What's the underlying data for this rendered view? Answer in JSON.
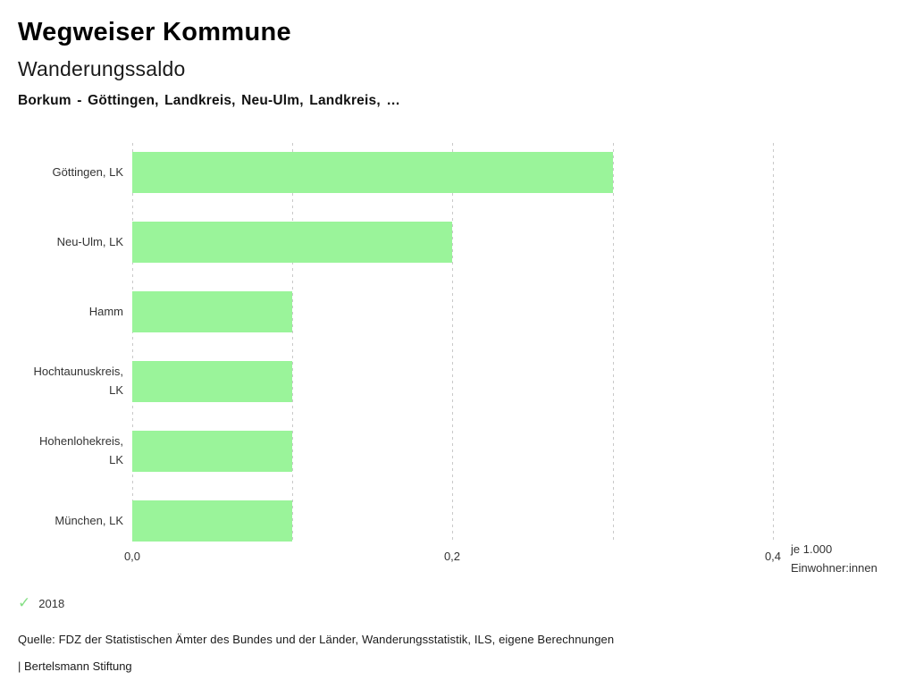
{
  "header": {
    "title": "Wegweiser Kommune",
    "subtitle": "Wanderungssaldo",
    "comparison_line": "Borkum - Göttingen, Landkreis, Neu-Ulm, Landkreis, …"
  },
  "chart_data": {
    "type": "bar",
    "orientation": "horizontal",
    "title": "Wanderungssaldo",
    "categories": [
      "Göttingen, LK",
      "Neu-Ulm, LK",
      "Hamm",
      "Hochtaunuskreis, LK",
      "Hohenlohekreis, LK",
      "München, LK"
    ],
    "series": [
      {
        "name": "2018",
        "values": [
          0.3,
          0.2,
          0.1,
          0.1,
          0.1,
          0.1
        ]
      }
    ],
    "xlabel": "je 1.000 Einwohner:innen",
    "xlim": [
      0,
      0.4
    ],
    "x_tick_labels": [
      "0,0",
      "0,2",
      "0,4"
    ],
    "x_tick_values": [
      0,
      0.2,
      0.4
    ],
    "grid_interval": 0.1,
    "grid": true,
    "legend_position": "bottom-left",
    "bar_color": "#9af49a",
    "grid_color": "#c9c9c9"
  },
  "axis": {
    "unit_line1": "je 1.000",
    "unit_line2": "Einwohner:innen"
  },
  "legend": {
    "check_icon": "✓",
    "check_color": "#86df86",
    "year": "2018"
  },
  "footer": {
    "source": "Quelle: FDZ der Statistischen Ämter des Bundes und der Länder, Wanderungsstatistik, ILS, eigene Berechnungen",
    "attribution": "| Bertelsmann Stiftung"
  }
}
